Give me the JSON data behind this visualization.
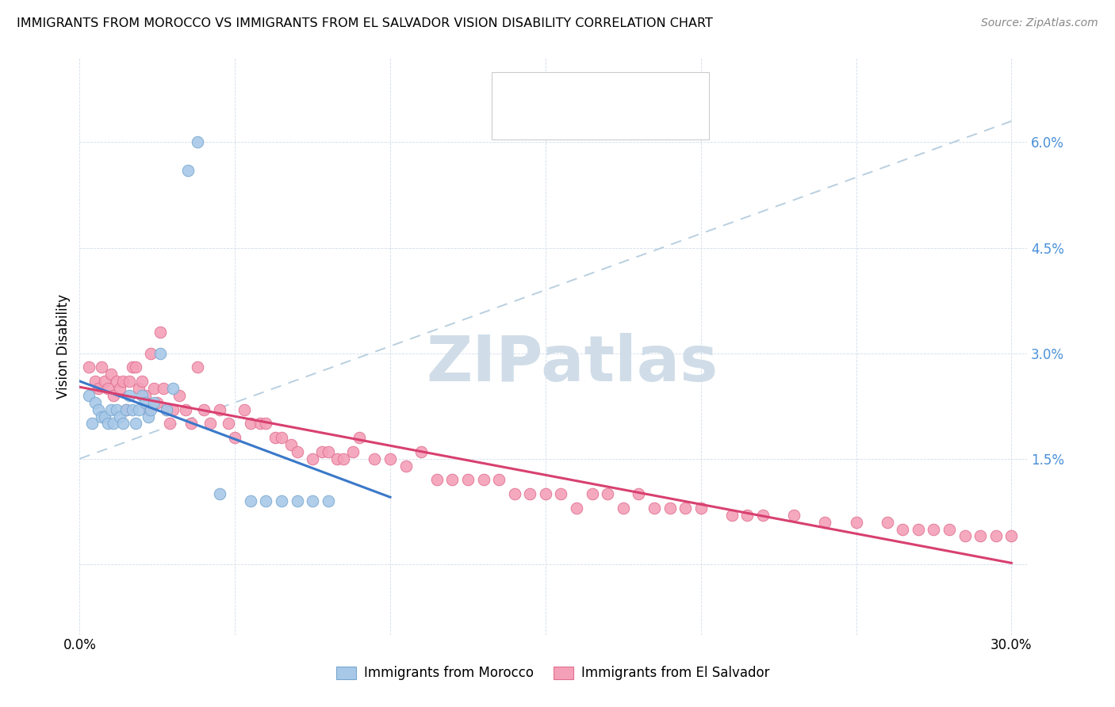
{
  "title": "IMMIGRANTS FROM MOROCCO VS IMMIGRANTS FROM EL SALVADOR VISION DISABILITY CORRELATION CHART",
  "source": "Source: ZipAtlas.com",
  "ylabel": "Vision Disability",
  "morocco_color": "#a8c8e8",
  "morocco_edge": "#78a8d0",
  "salvador_color": "#f4a0b8",
  "salvador_edge": "#e07090",
  "trend_morocco_color": "#3a78c9",
  "trend_salvador_color": "#d84070",
  "trend_ref_color": "#b8cfe0",
  "watermark_color": "#d0dde8",
  "morocco_x": [
    0.003,
    0.004,
    0.005,
    0.006,
    0.007,
    0.008,
    0.009,
    0.01,
    0.011,
    0.012,
    0.013,
    0.014,
    0.015,
    0.016,
    0.017,
    0.018,
    0.019,
    0.02,
    0.021,
    0.022,
    0.023,
    0.024,
    0.026,
    0.028,
    0.03,
    0.035,
    0.038,
    0.045,
    0.055,
    0.06,
    0.065,
    0.07,
    0.075,
    0.08
  ],
  "morocco_y": [
    0.024,
    0.02,
    0.023,
    0.022,
    0.021,
    0.021,
    0.02,
    0.022,
    0.02,
    0.022,
    0.021,
    0.02,
    0.022,
    0.024,
    0.022,
    0.02,
    0.022,
    0.024,
    0.023,
    0.021,
    0.022,
    0.023,
    0.03,
    0.022,
    0.025,
    0.056,
    0.06,
    0.01,
    0.009,
    0.009,
    0.009,
    0.009,
    0.009,
    0.009
  ],
  "salvador_x": [
    0.003,
    0.005,
    0.006,
    0.007,
    0.008,
    0.009,
    0.01,
    0.011,
    0.012,
    0.013,
    0.014,
    0.015,
    0.016,
    0.017,
    0.018,
    0.019,
    0.02,
    0.021,
    0.022,
    0.023,
    0.024,
    0.025,
    0.026,
    0.027,
    0.028,
    0.029,
    0.03,
    0.032,
    0.034,
    0.036,
    0.038,
    0.04,
    0.042,
    0.045,
    0.048,
    0.05,
    0.053,
    0.055,
    0.058,
    0.06,
    0.063,
    0.065,
    0.068,
    0.07,
    0.075,
    0.078,
    0.08,
    0.083,
    0.085,
    0.088,
    0.09,
    0.095,
    0.1,
    0.105,
    0.11,
    0.115,
    0.12,
    0.125,
    0.13,
    0.135,
    0.14,
    0.145,
    0.15,
    0.155,
    0.16,
    0.165,
    0.17,
    0.175,
    0.18,
    0.185,
    0.19,
    0.195,
    0.2,
    0.21,
    0.215,
    0.22,
    0.23,
    0.24,
    0.25,
    0.26,
    0.265,
    0.27,
    0.275,
    0.28,
    0.285,
    0.29,
    0.295,
    0.3
  ],
  "salvador_y": [
    0.028,
    0.026,
    0.025,
    0.028,
    0.026,
    0.025,
    0.027,
    0.024,
    0.026,
    0.025,
    0.026,
    0.022,
    0.026,
    0.028,
    0.028,
    0.025,
    0.026,
    0.024,
    0.022,
    0.03,
    0.025,
    0.023,
    0.033,
    0.025,
    0.022,
    0.02,
    0.022,
    0.024,
    0.022,
    0.02,
    0.028,
    0.022,
    0.02,
    0.022,
    0.02,
    0.018,
    0.022,
    0.02,
    0.02,
    0.02,
    0.018,
    0.018,
    0.017,
    0.016,
    0.015,
    0.016,
    0.016,
    0.015,
    0.015,
    0.016,
    0.018,
    0.015,
    0.015,
    0.014,
    0.016,
    0.012,
    0.012,
    0.012,
    0.012,
    0.012,
    0.01,
    0.01,
    0.01,
    0.01,
    0.008,
    0.01,
    0.01,
    0.008,
    0.01,
    0.008,
    0.008,
    0.008,
    0.008,
    0.007,
    0.007,
    0.007,
    0.007,
    0.006,
    0.006,
    0.006,
    0.005,
    0.005,
    0.005,
    0.005,
    0.004,
    0.004,
    0.004,
    0.004
  ],
  "morocco_trend_x0": 0.0,
  "morocco_trend_x1": 0.1,
  "salvador_trend_x0": 0.0,
  "salvador_trend_x1": 0.3,
  "ref_line_x": [
    0.0,
    0.3
  ],
  "ref_line_y": [
    0.015,
    0.063
  ],
  "xlim": [
    0.0,
    0.305
  ],
  "ylim": [
    -0.01,
    0.072
  ],
  "ytick_vals": [
    0.0,
    0.015,
    0.03,
    0.045,
    0.06
  ],
  "ytick_labels": [
    "",
    "1.5%",
    "3.0%",
    "4.5%",
    "6.0%"
  ],
  "xtick_vals": [
    0.0,
    0.05,
    0.1,
    0.15,
    0.2,
    0.25,
    0.3
  ],
  "xtick_labels": [
    "0.0%",
    "",
    "",
    "",
    "",
    "",
    "30.0%"
  ]
}
